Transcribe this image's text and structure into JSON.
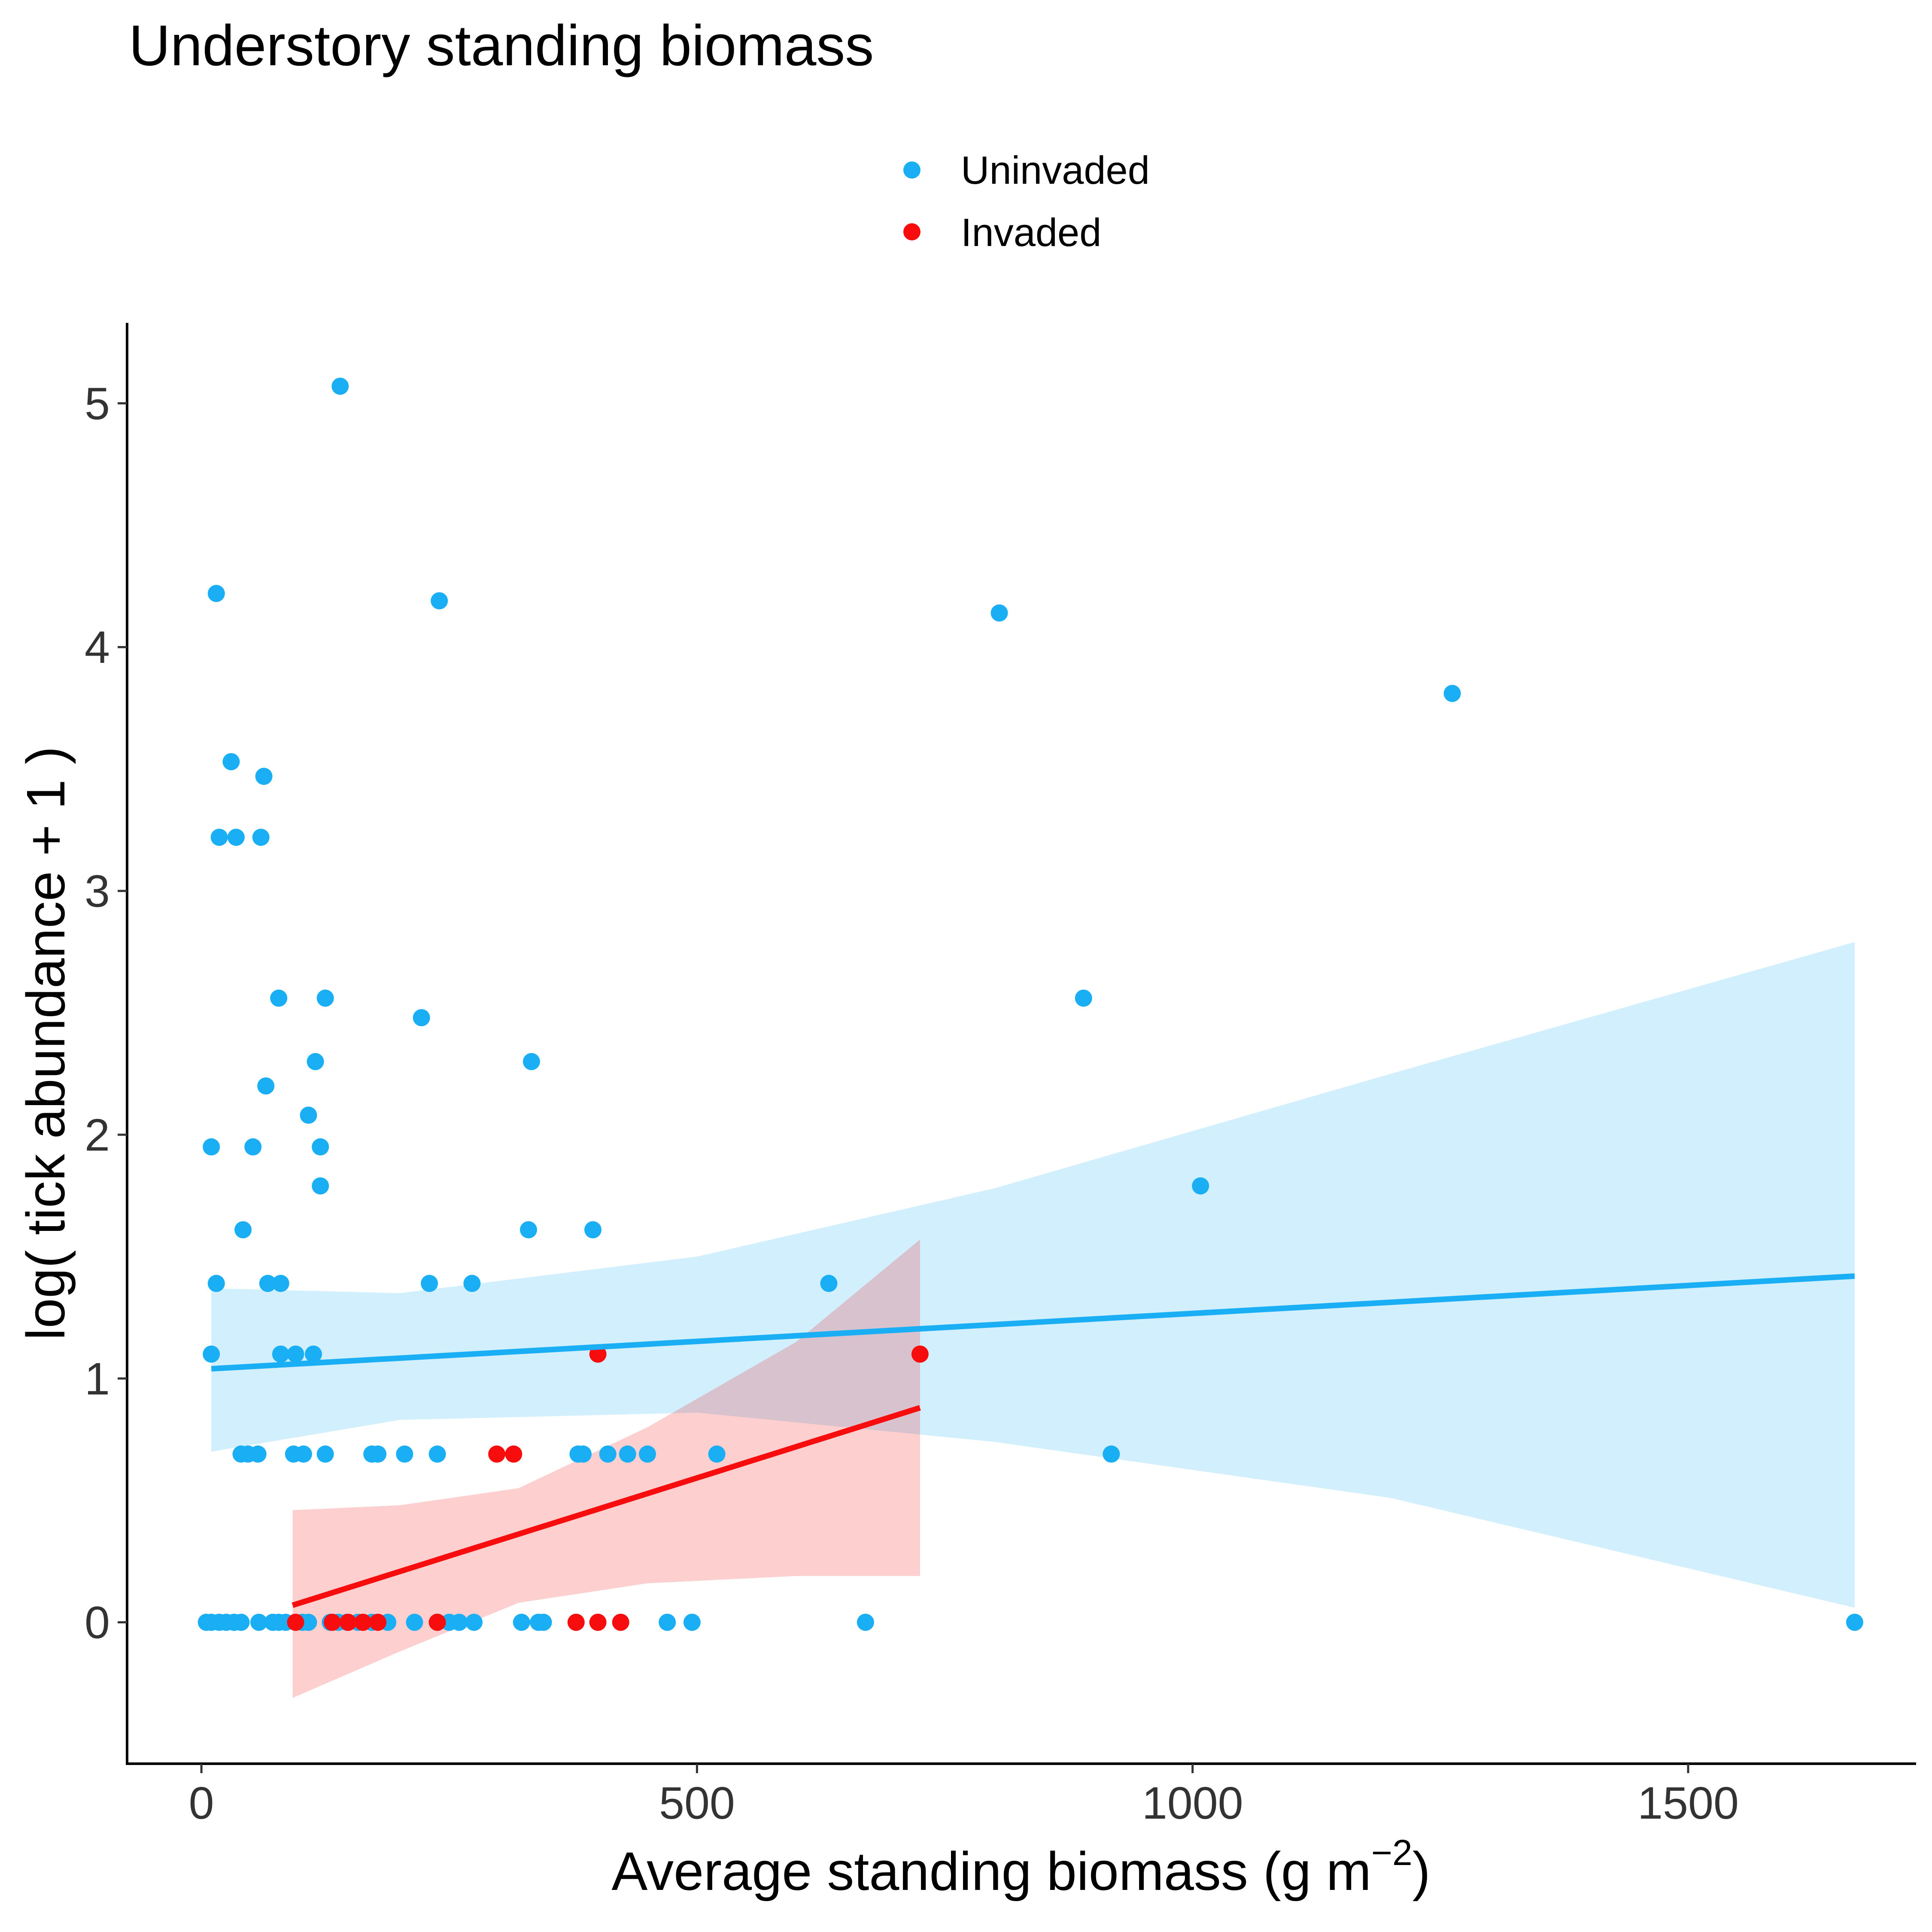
{
  "chart_data": {
    "type": "scatter",
    "title": "Understory standing biomass",
    "xlabel": {
      "text": "Average standing biomass (g m",
      "superscript": "−2",
      "suffix": ")"
    },
    "ylabel": "log( tick abundance + 1 )",
    "xlim": [
      -75,
      1730
    ],
    "ylim": [
      -0.58,
      5.33
    ],
    "xticks": [
      0,
      500,
      1000,
      1500
    ],
    "xtick_labels": [
      "0",
      "500",
      "1000",
      "1500"
    ],
    "yticks": [
      0,
      1,
      2,
      3,
      4,
      5
    ],
    "ytick_labels": [
      "0",
      "1",
      "2",
      "3",
      "4",
      "5"
    ],
    "grid": false,
    "legend_position": "top",
    "legend": [
      {
        "label": "Uninvaded",
        "color": "#1AAFF5"
      },
      {
        "label": "Invaded",
        "color": "#F70D0D"
      }
    ],
    "series": [
      {
        "name": "Uninvaded",
        "color": "#1AAFF5",
        "points": [
          [
            5,
            0
          ],
          [
            10,
            0
          ],
          [
            18,
            0
          ],
          [
            25,
            0
          ],
          [
            33,
            0
          ],
          [
            40,
            0
          ],
          [
            58,
            0
          ],
          [
            72,
            0
          ],
          [
            78,
            0
          ],
          [
            85,
            0
          ],
          [
            102,
            0
          ],
          [
            108,
            0
          ],
          [
            130,
            0
          ],
          [
            138,
            0
          ],
          [
            147,
            0
          ],
          [
            158,
            0
          ],
          [
            172,
            0
          ],
          [
            188,
            0
          ],
          [
            215,
            0
          ],
          [
            238,
            0
          ],
          [
            250,
            0
          ],
          [
            260,
            0
          ],
          [
            275,
            0
          ],
          [
            323,
            0
          ],
          [
            340,
            0
          ],
          [
            345,
            0
          ],
          [
            470,
            0
          ],
          [
            495,
            0
          ],
          [
            670,
            0
          ],
          [
            1668,
            0
          ],
          [
            40,
            0.69
          ],
          [
            47,
            0.69
          ],
          [
            57,
            0.69
          ],
          [
            93,
            0.69
          ],
          [
            103,
            0.69
          ],
          [
            125,
            0.69
          ],
          [
            172,
            0.69
          ],
          [
            178,
            0.69
          ],
          [
            205,
            0.69
          ],
          [
            238,
            0.69
          ],
          [
            380,
            0.69
          ],
          [
            385,
            0.69
          ],
          [
            410,
            0.69
          ],
          [
            430,
            0.69
          ],
          [
            450,
            0.69
          ],
          [
            520,
            0.69
          ],
          [
            918,
            0.69
          ],
          [
            10,
            1.1
          ],
          [
            80,
            1.1
          ],
          [
            95,
            1.1
          ],
          [
            113,
            1.1
          ],
          [
            15,
            1.39
          ],
          [
            67,
            1.39
          ],
          [
            80,
            1.39
          ],
          [
            230,
            1.39
          ],
          [
            273,
            1.39
          ],
          [
            633,
            1.39
          ],
          [
            42,
            1.61
          ],
          [
            330,
            1.61
          ],
          [
            395,
            1.61
          ],
          [
            120,
            1.79
          ],
          [
            1008,
            1.79
          ],
          [
            10,
            1.95
          ],
          [
            52,
            1.95
          ],
          [
            120,
            1.95
          ],
          [
            108,
            2.08
          ],
          [
            65,
            2.2
          ],
          [
            115,
            2.3
          ],
          [
            333,
            2.3
          ],
          [
            222,
            2.48
          ],
          [
            78,
            2.56
          ],
          [
            125,
            2.56
          ],
          [
            890,
            2.56
          ],
          [
            18,
            3.22
          ],
          [
            35,
            3.22
          ],
          [
            60,
            3.22
          ],
          [
            63,
            3.47
          ],
          [
            30,
            3.53
          ],
          [
            1262,
            3.81
          ],
          [
            805,
            4.14
          ],
          [
            240,
            4.19
          ],
          [
            15,
            4.22
          ],
          [
            140,
            5.07
          ]
        ],
        "fit_line": [
          [
            10,
            1.04
          ],
          [
            1668,
            1.42
          ]
        ],
        "ci_upper": [
          [
            10,
            1.37
          ],
          [
            200,
            1.35
          ],
          [
            500,
            1.5
          ],
          [
            800,
            1.78
          ],
          [
            1200,
            2.25
          ],
          [
            1668,
            2.79
          ]
        ],
        "ci_lower": [
          [
            10,
            0.7
          ],
          [
            200,
            0.83
          ],
          [
            500,
            0.86
          ],
          [
            800,
            0.74
          ],
          [
            1200,
            0.51
          ],
          [
            1668,
            0.06
          ]
        ]
      },
      {
        "name": "Invaded",
        "color": "#F70D0D",
        "points": [
          [
            95,
            0
          ],
          [
            132,
            0
          ],
          [
            148,
            0
          ],
          [
            163,
            0
          ],
          [
            178,
            0
          ],
          [
            238,
            0
          ],
          [
            378,
            0
          ],
          [
            400,
            0
          ],
          [
            423,
            0
          ],
          [
            298,
            0.69
          ],
          [
            315,
            0.69
          ],
          [
            400,
            1.1
          ],
          [
            725,
            1.1
          ]
        ],
        "fit_line": [
          [
            92,
            0.07
          ],
          [
            725,
            0.88
          ]
        ],
        "ci_upper": [
          [
            92,
            0.46
          ],
          [
            200,
            0.48
          ],
          [
            320,
            0.55
          ],
          [
            450,
            0.8
          ],
          [
            600,
            1.15
          ],
          [
            725,
            1.57
          ]
        ],
        "ci_lower": [
          [
            92,
            -0.31
          ],
          [
            200,
            -0.12
          ],
          [
            320,
            0.08
          ],
          [
            450,
            0.16
          ],
          [
            600,
            0.19
          ],
          [
            725,
            0.19
          ]
        ]
      }
    ]
  }
}
